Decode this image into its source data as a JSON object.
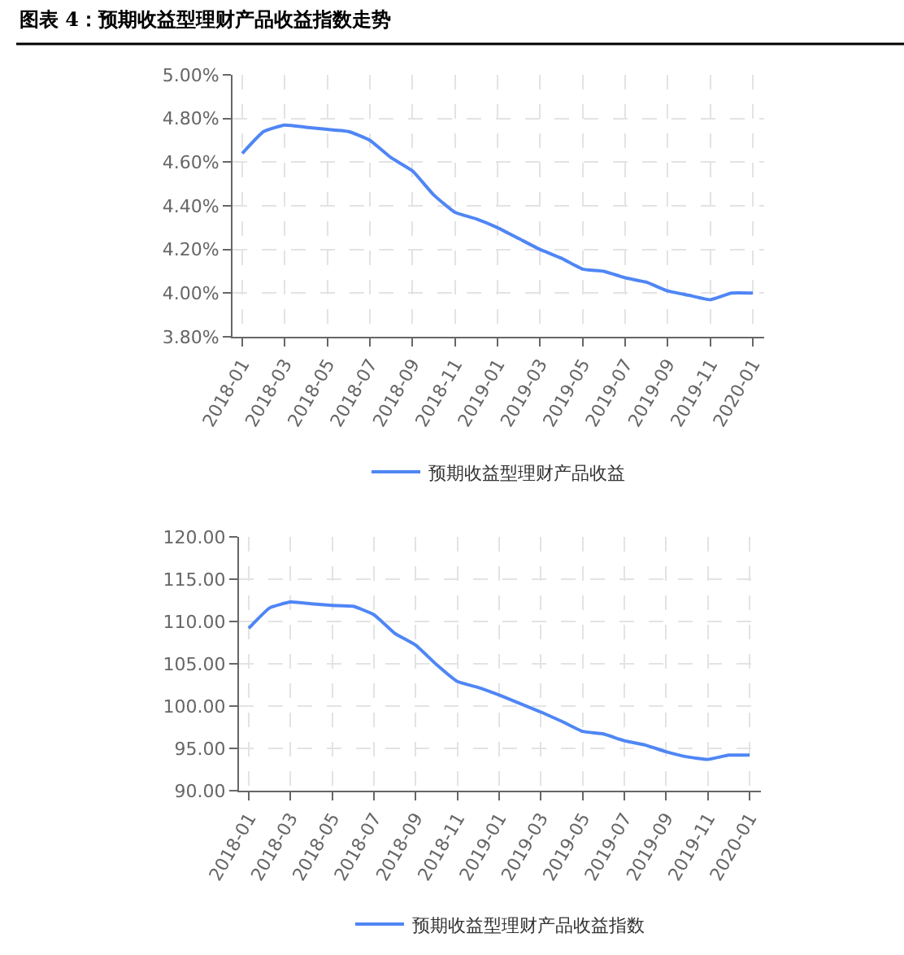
{
  "chart_data": [
    {
      "type": "line",
      "title": "图表 4：预期收益型理财产品收益指数走势",
      "categories": [
        "2018-01",
        null,
        "2018-03",
        null,
        "2018-05",
        null,
        "2018-07",
        null,
        "2018-09",
        null,
        "2018-11",
        null,
        "2019-01",
        null,
        "2019-03",
        null,
        "2019-05",
        null,
        "2019-07",
        null,
        "2019-09",
        null,
        "2019-11",
        null,
        "2020-01"
      ],
      "series": [
        {
          "name": "预期收益型理财产品收益",
          "color": "#4f86f5",
          "values": [
            4.64,
            4.74,
            4.77,
            4.76,
            4.75,
            4.74,
            4.7,
            4.62,
            4.56,
            4.45,
            4.37,
            4.34,
            4.3,
            4.25,
            4.2,
            4.16,
            4.11,
            4.1,
            4.07,
            4.05,
            4.01,
            3.99,
            3.97,
            4.0,
            4.0
          ]
        }
      ],
      "ylim": [
        3.8,
        5.0
      ],
      "yticks": [
        {
          "value": 3.8,
          "label": "3.80%"
        },
        {
          "value": 4.0,
          "label": "4.00%"
        },
        {
          "value": 4.2,
          "label": "4.20%"
        },
        {
          "value": 4.4,
          "label": "4.40%"
        },
        {
          "value": 4.6,
          "label": "4.60%"
        },
        {
          "value": 4.8,
          "label": "4.80%"
        },
        {
          "value": 5.0,
          "label": "5.00%"
        }
      ],
      "grid": true,
      "legend": "bottom"
    },
    {
      "type": "line",
      "categories": [
        "2018-01",
        null,
        "2018-03",
        null,
        "2018-05",
        null,
        "2018-07",
        null,
        "2018-09",
        null,
        "2018-11",
        null,
        "2019-01",
        null,
        "2019-03",
        null,
        "2019-05",
        null,
        "2019-07",
        null,
        "2019-09",
        null,
        "2019-11",
        null,
        "2020-01"
      ],
      "series": [
        {
          "name": "预期收益型理财产品收益指数",
          "color": "#4f86f5",
          "values": [
            109.2,
            111.6,
            112.3,
            112.1,
            111.9,
            111.8,
            110.8,
            108.6,
            107.2,
            104.9,
            102.9,
            102.2,
            101.3,
            100.3,
            99.3,
            98.2,
            97.0,
            96.7,
            95.9,
            95.4,
            94.6,
            94.0,
            93.7,
            94.2,
            94.2
          ]
        }
      ],
      "ylim": [
        90,
        120
      ],
      "yticks": [
        {
          "value": 90,
          "label": "90.00"
        },
        {
          "value": 95,
          "label": "95.00"
        },
        {
          "value": 100,
          "label": "100.00"
        },
        {
          "value": 105,
          "label": "105.00"
        },
        {
          "value": 110,
          "label": "110.00"
        },
        {
          "value": 115,
          "label": "115.00"
        },
        {
          "value": 120,
          "label": "120.00"
        }
      ],
      "grid": true,
      "legend": "bottom"
    }
  ]
}
